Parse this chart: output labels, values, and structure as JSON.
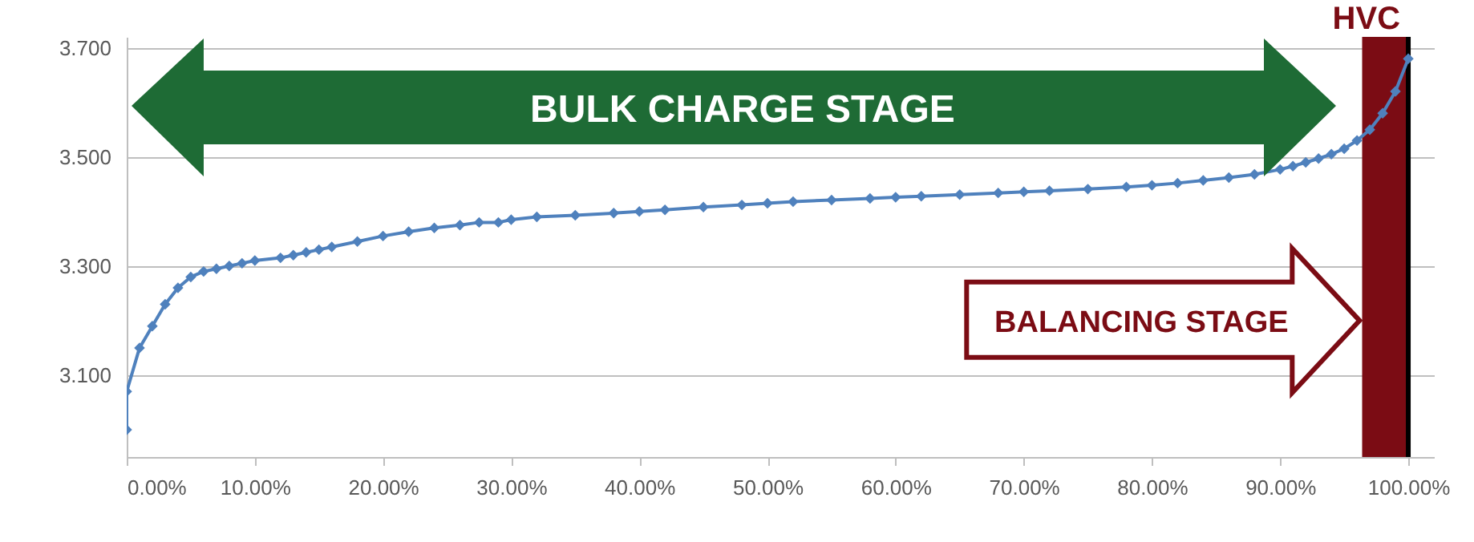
{
  "chart_data": {
    "type": "line",
    "x": [
      0,
      0,
      1,
      2,
      3,
      4,
      5,
      6,
      7,
      8,
      9,
      10,
      12,
      13,
      14,
      15,
      16,
      18,
      20,
      22,
      24,
      26,
      27.5,
      29,
      30,
      32,
      35,
      38,
      40,
      42,
      45,
      48,
      50,
      52,
      55,
      58,
      60,
      62,
      65,
      68,
      70,
      72,
      75,
      78,
      80,
      82,
      84,
      86,
      88,
      90,
      91,
      92,
      93,
      94,
      95,
      96,
      97,
      98,
      99,
      100
    ],
    "series": [
      {
        "color": "#4f81bd",
        "values": [
          3.0,
          3.07,
          3.15,
          3.19,
          3.23,
          3.26,
          3.28,
          3.29,
          3.295,
          3.3,
          3.305,
          3.31,
          3.315,
          3.32,
          3.325,
          3.33,
          3.335,
          3.345,
          3.355,
          3.363,
          3.37,
          3.375,
          3.38,
          3.38,
          3.385,
          3.39,
          3.393,
          3.397,
          3.4,
          3.403,
          3.408,
          3.412,
          3.415,
          3.418,
          3.421,
          3.424,
          3.426,
          3.428,
          3.431,
          3.434,
          3.436,
          3.438,
          3.441,
          3.445,
          3.448,
          3.452,
          3.457,
          3.462,
          3.468,
          3.477,
          3.483,
          3.49,
          3.497,
          3.505,
          3.515,
          3.53,
          3.55,
          3.58,
          3.62,
          3.68
        ]
      }
    ],
    "xlim": [
      0,
      102
    ],
    "ylim": [
      2.95,
      3.72
    ],
    "xticks": [
      {
        "value": 0,
        "label": "0.00%"
      },
      {
        "value": 10,
        "label": "10.00%"
      },
      {
        "value": 20,
        "label": "20.00%"
      },
      {
        "value": 30,
        "label": "30.00%"
      },
      {
        "value": 40,
        "label": "40.00%"
      },
      {
        "value": 50,
        "label": "50.00%"
      },
      {
        "value": 60,
        "label": "60.00%"
      },
      {
        "value": 70,
        "label": "70.00%"
      },
      {
        "value": 80,
        "label": "80.00%"
      },
      {
        "value": 90,
        "label": "90.00%"
      },
      {
        "value": 100,
        "label": "100.00%"
      }
    ],
    "yticks": [
      {
        "value": 3.1,
        "label": "3.100"
      },
      {
        "value": 3.3,
        "label": "3.300"
      },
      {
        "value": 3.5,
        "label": "3.500"
      },
      {
        "value": 3.7,
        "label": "3.700"
      }
    ],
    "grid": "y",
    "marker": "diamond",
    "line_style": "solid",
    "bands": [
      {
        "axis": "x",
        "from": 96.4,
        "to": 100,
        "color": "#7b0c14"
      }
    ],
    "ref_lines": [
      {
        "axis": "x",
        "value": 100,
        "label": "HVC",
        "color": "#000000"
      }
    ],
    "annotations": [
      "BULK CHARGE STAGE",
      {
        "text": "BALANCING STAGE",
        "x": 96.2,
        "y": 3.2
      }
    ]
  }
}
